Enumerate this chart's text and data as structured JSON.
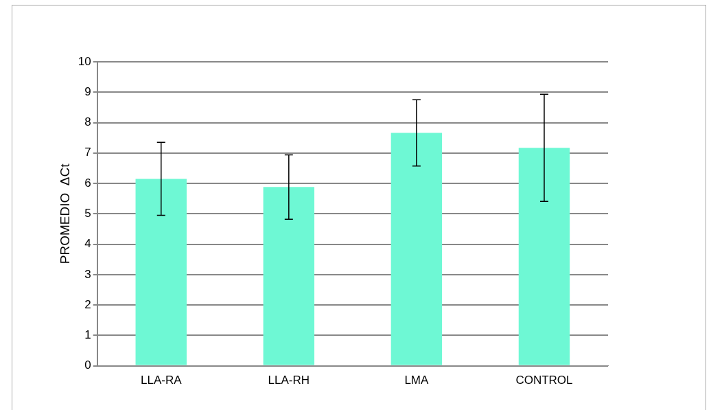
{
  "chart_data": {
    "type": "bar",
    "ylabel": "PROMEDIO  ΔCt",
    "categories": [
      "LLA-RA",
      "LLA-RH",
      "LMA",
      "CONTROL"
    ],
    "values": [
      6.15,
      5.88,
      7.66,
      7.17
    ],
    "errors": [
      1.2,
      1.06,
      1.09,
      1.76
    ],
    "color": "#6ef8d4",
    "ylim": [
      0,
      10
    ],
    "yticks": [
      0,
      1,
      2,
      3,
      4,
      5,
      6,
      7,
      8,
      9,
      10
    ],
    "grid": "y",
    "legend": false
  }
}
